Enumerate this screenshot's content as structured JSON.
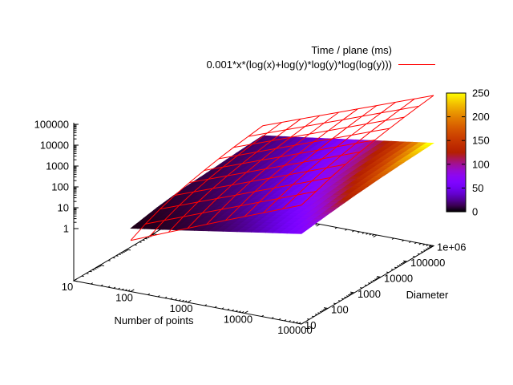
{
  "background": "#ffffff",
  "chart_data": {
    "type": "surface3d",
    "view": "gnuplot splot, log-scaled x/y/z axes, pm3d data surface plus red wireframe function",
    "legend": {
      "position": "top-right",
      "entries": [
        {
          "label": "Time / plane (ms)",
          "sample": "none"
        },
        {
          "label": "0.001*x*(log(x)+log(y)*log(y)*log(log(y)))",
          "sample": "line",
          "color": "#ff0000"
        }
      ]
    },
    "axes": {
      "x": {
        "label": "Number of points",
        "scale": "log",
        "range": [
          10,
          100000
        ],
        "tick_labels": [
          "10",
          "100",
          "1000",
          "10000",
          "100000"
        ]
      },
      "y": {
        "label": "Diameter",
        "scale": "log",
        "range": [
          10,
          1000000
        ],
        "tick_labels": [
          "10",
          "100",
          "1000",
          "10000",
          "100000",
          "1e+06"
        ]
      },
      "z": {
        "label": "",
        "scale": "log",
        "range": [
          1,
          100000
        ],
        "tick_labels": [
          "1",
          "10",
          "100",
          "1000",
          "10000",
          "100000"
        ]
      },
      "colorbar": {
        "range": [
          0,
          250
        ],
        "tick_labels": [
          "0",
          "50",
          "100",
          "150",
          "200",
          "250"
        ],
        "palette": "gnuplot-default black-purple-violet-red-orange-yellow"
      }
    },
    "series": [
      {
        "name": "Time / plane (ms)",
        "type": "pm3d-surface",
        "x_number_of_points": [
          100,
          1000,
          10000,
          100000
        ],
        "y_diameter": [
          10,
          100,
          1000,
          10000,
          100000,
          1000000
        ],
        "z_time_ms_estimated": [
          [
            3.4,
            6,
            9,
            11,
            14,
            17
          ],
          [
            9,
            15,
            22,
            29,
            36,
            42
          ],
          [
            25,
            39,
            56,
            73,
            90,
            106
          ],
          [
            67,
            100,
            141,
            184,
            226,
            268
          ]
        ]
      },
      {
        "name": "0.001*x*(log(x)+log(y)*log(y)*log(log(y)))",
        "type": "wireframe",
        "color": "#ff0000",
        "formula": "0.001*x*(ln(x)+ln(y)*ln(y)*ln(ln(y)))",
        "x_range": [
          100,
          100000
        ],
        "y_range": [
          10,
          1000000
        ],
        "isosamples": 10
      }
    ]
  }
}
